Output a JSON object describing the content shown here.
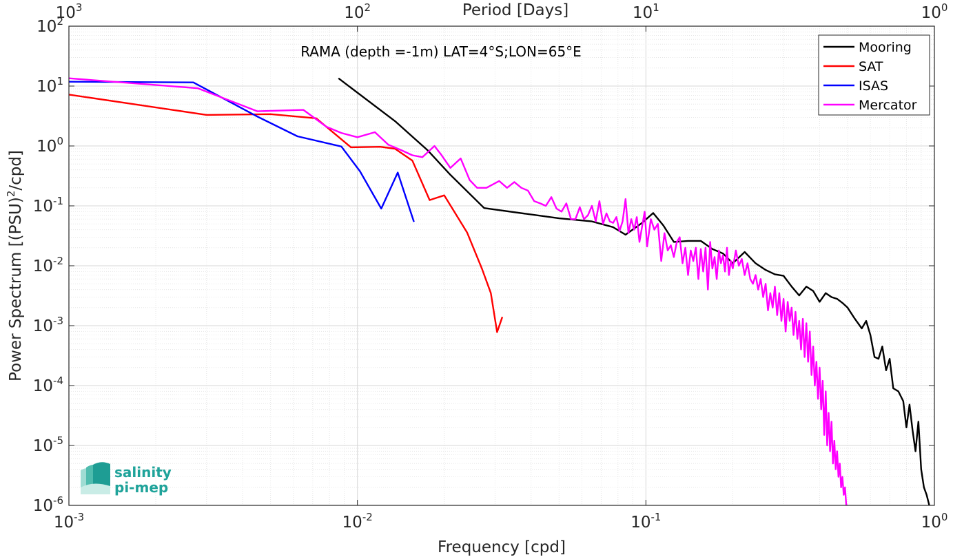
{
  "chart_data": {
    "type": "line",
    "xscale": "log",
    "yscale": "log",
    "xlim": [
      0.001,
      1
    ],
    "ylim": [
      1e-06,
      100
    ],
    "grid": true,
    "legend_location": "top-right",
    "xlabel": "Frequency [cpd]",
    "ylabel": "Power Spectrum [(PSU)²/cpd]",
    "x2label": "Period [Days]",
    "annotation": "RAMA (depth =-1m) LAT=4°S;LON=65°E",
    "x_ticks": [
      {
        "value": 0.001,
        "base": "10",
        "exp": "-3"
      },
      {
        "value": 0.01,
        "base": "10",
        "exp": "-2"
      },
      {
        "value": 0.1,
        "base": "10",
        "exp": "-1"
      },
      {
        "value": 1,
        "base": "10",
        "exp": "0"
      }
    ],
    "x2_ticks": [
      {
        "freq": 0.001,
        "base": "10",
        "exp": "3"
      },
      {
        "freq": 0.01,
        "base": "10",
        "exp": "2"
      },
      {
        "freq": 0.1,
        "base": "10",
        "exp": "1"
      },
      {
        "freq": 1,
        "base": "10",
        "exp": "0"
      }
    ],
    "y_ticks": [
      {
        "value": 100,
        "base": "10",
        "exp": "2"
      },
      {
        "value": 10,
        "base": "10",
        "exp": "1"
      },
      {
        "value": 1,
        "base": "10",
        "exp": "0"
      },
      {
        "value": 0.1,
        "base": "10",
        "exp": "-1"
      },
      {
        "value": 0.01,
        "base": "10",
        "exp": "-2"
      },
      {
        "value": 0.001,
        "base": "10",
        "exp": "-3"
      },
      {
        "value": 0.0001,
        "base": "10",
        "exp": "-4"
      },
      {
        "value": 1e-05,
        "base": "10",
        "exp": "-5"
      },
      {
        "value": 1e-06,
        "base": "10",
        "exp": "-6"
      }
    ],
    "series": [
      {
        "name": "Mooring",
        "color": "#000000",
        "x": [
          0.0086,
          0.0135,
          0.0175,
          0.021,
          0.0275,
          0.05,
          0.065,
          0.077,
          0.085,
          0.097,
          0.106,
          0.115,
          0.125,
          0.14,
          0.155,
          0.17,
          0.185,
          0.2,
          0.22,
          0.24,
          0.26,
          0.28,
          0.3,
          0.32,
          0.34,
          0.36,
          0.38,
          0.4,
          0.42,
          0.44,
          0.46,
          0.48,
          0.5,
          0.53,
          0.56,
          0.58,
          0.6,
          0.62,
          0.64,
          0.66,
          0.68,
          0.7,
          0.72,
          0.75,
          0.78,
          0.8,
          0.82,
          0.84,
          0.86,
          0.88,
          0.9,
          0.92,
          0.94,
          0.96
        ],
        "y": [
          13.5,
          2.6,
          0.85,
          0.33,
          0.092,
          0.062,
          0.055,
          0.044,
          0.033,
          0.052,
          0.076,
          0.047,
          0.025,
          0.026,
          0.026,
          0.019,
          0.016,
          0.011,
          0.017,
          0.011,
          0.0085,
          0.0072,
          0.0068,
          0.0045,
          0.0032,
          0.0045,
          0.0038,
          0.0025,
          0.0035,
          0.003,
          0.0028,
          0.0024,
          0.002,
          0.0013,
          0.0009,
          0.0012,
          0.0007,
          0.0003,
          0.00028,
          0.00045,
          0.00018,
          0.00028,
          9e-05,
          8e-05,
          5.5e-05,
          2e-05,
          4.8e-05,
          1.8e-05,
          8e-06,
          2.5e-05,
          4e-06,
          2e-06,
          1.5e-06,
          1e-06
        ]
      },
      {
        "name": "SAT",
        "color": "#ff0000",
        "x": [
          0.001,
          0.003,
          0.005,
          0.0072,
          0.0095,
          0.012,
          0.0135,
          0.0155,
          0.0178,
          0.02,
          0.024,
          0.027,
          0.029,
          0.0305,
          0.0318
        ],
        "y": [
          7.2,
          3.3,
          3.4,
          2.9,
          0.95,
          0.97,
          0.9,
          0.57,
          0.125,
          0.15,
          0.036,
          0.009,
          0.0035,
          0.00078,
          0.0014
        ]
      },
      {
        "name": "ISAS",
        "color": "#0000ff",
        "x": [
          0.001,
          0.0027,
          0.0045,
          0.0062,
          0.0088,
          0.0102,
          0.0121,
          0.0138,
          0.0157
        ],
        "y": [
          11.8,
          11.5,
          3.1,
          1.45,
          0.98,
          0.38,
          0.09,
          0.36,
          0.054
        ]
      },
      {
        "name": "Mercator",
        "color": "#ff00ff",
        "x": [
          0.001,
          0.0028,
          0.0045,
          0.0065,
          0.0078,
          0.0088,
          0.01,
          0.0115,
          0.0128,
          0.0142,
          0.0155,
          0.0168,
          0.0185,
          0.0195,
          0.021,
          0.0228,
          0.0245,
          0.026,
          0.028,
          0.031,
          0.033,
          0.035,
          0.037,
          0.039,
          0.041,
          0.043,
          0.045,
          0.047,
          0.049,
          0.051,
          0.053,
          0.055,
          0.057,
          0.059,
          0.061,
          0.063,
          0.065,
          0.067,
          0.069,
          0.071,
          0.073,
          0.075,
          0.077,
          0.079,
          0.081,
          0.083,
          0.085,
          0.087,
          0.089,
          0.091,
          0.093,
          0.095,
          0.097,
          0.099,
          0.101,
          0.104,
          0.107,
          0.11,
          0.113,
          0.116,
          0.119,
          0.122,
          0.125,
          0.128,
          0.131,
          0.134,
          0.137,
          0.14,
          0.143,
          0.146,
          0.149,
          0.152,
          0.155,
          0.158,
          0.161,
          0.164,
          0.167,
          0.17,
          0.173,
          0.176,
          0.179,
          0.182,
          0.185,
          0.188,
          0.191,
          0.194,
          0.197,
          0.2,
          0.205,
          0.21,
          0.215,
          0.22,
          0.225,
          0.23,
          0.235,
          0.24,
          0.245,
          0.25,
          0.255,
          0.26,
          0.265,
          0.27,
          0.275,
          0.28,
          0.285,
          0.29,
          0.295,
          0.3,
          0.305,
          0.31,
          0.315,
          0.32,
          0.325,
          0.33,
          0.335,
          0.34,
          0.345,
          0.35,
          0.355,
          0.36,
          0.365,
          0.37,
          0.375,
          0.38,
          0.385,
          0.39,
          0.395,
          0.4,
          0.405,
          0.41,
          0.415,
          0.42,
          0.425,
          0.43,
          0.435,
          0.44,
          0.445,
          0.45,
          0.455,
          0.46,
          0.465,
          0.47,
          0.475,
          0.48,
          0.485,
          0.49,
          0.495,
          0.5
        ],
        "y": [
          13.5,
          9.2,
          3.8,
          4.0,
          2.1,
          1.65,
          1.4,
          1.7,
          1.05,
          0.85,
          0.7,
          0.65,
          1.0,
          0.72,
          0.43,
          0.62,
          0.27,
          0.2,
          0.2,
          0.26,
          0.2,
          0.25,
          0.2,
          0.18,
          0.12,
          0.11,
          0.1,
          0.14,
          0.09,
          0.08,
          0.11,
          0.06,
          0.06,
          0.095,
          0.06,
          0.07,
          0.1,
          0.055,
          0.12,
          0.05,
          0.075,
          0.055,
          0.052,
          0.065,
          0.038,
          0.055,
          0.13,
          0.035,
          0.06,
          0.04,
          0.065,
          0.025,
          0.045,
          0.08,
          0.021,
          0.06,
          0.04,
          0.05,
          0.012,
          0.035,
          0.018,
          0.022,
          0.014,
          0.025,
          0.03,
          0.011,
          0.02,
          0.007,
          0.018,
          0.012,
          0.02,
          0.006,
          0.019,
          0.008,
          0.02,
          0.004,
          0.025,
          0.009,
          0.014,
          0.006,
          0.018,
          0.011,
          0.015,
          0.008,
          0.02,
          0.007,
          0.012,
          0.009,
          0.018,
          0.01,
          0.013,
          0.007,
          0.011,
          0.006,
          0.005,
          0.007,
          0.004,
          0.006,
          0.003,
          0.005,
          0.0018,
          0.0035,
          0.002,
          0.0045,
          0.0015,
          0.0035,
          0.0012,
          0.0028,
          0.0008,
          0.0025,
          0.0012,
          0.002,
          0.0007,
          0.0017,
          0.0006,
          0.0012,
          0.0004,
          0.0013,
          0.0003,
          0.0011,
          0.00025,
          0.0008,
          0.00015,
          0.00045,
          0.0001,
          0.00025,
          6e-05,
          0.0002,
          4e-05,
          0.00012,
          1.5e-05,
          8e-05,
          1e-05,
          3.5e-05,
          8e-06,
          2.5e-05,
          5e-06,
          1.2e-05,
          4e-06,
          8e-06,
          3e-06,
          5e-06,
          2e-06,
          3e-06,
          1.5e-06,
          2e-06,
          1e-06,
          1e-06
        ]
      }
    ]
  },
  "logo": {
    "line1": "salinity",
    "line2": "pi-mep"
  }
}
